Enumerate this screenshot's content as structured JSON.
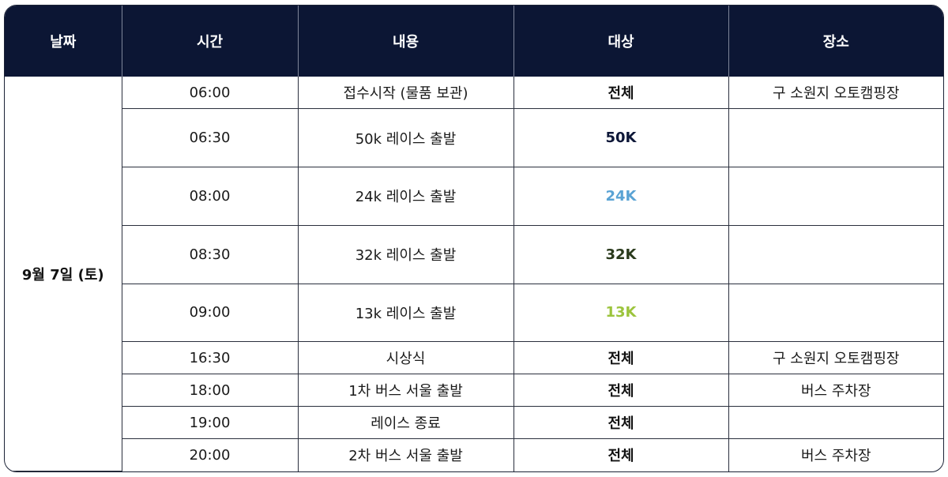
{
  "headers": [
    "날짜",
    "시간",
    "내용",
    "대상",
    "장소"
  ],
  "date": "9월 7일 (토)",
  "rows": [
    {
      "time": "06:00",
      "content": "접수시작 (물품 보관)",
      "target": "전체",
      "target_color": "#111111",
      "place": "구 소원지 오토캠핑장"
    },
    {
      "time": "06:30",
      "content": "50k 레이스 출발",
      "target": "50K",
      "target_color": "#0d1738",
      "place": ""
    },
    {
      "time": "08:00",
      "content": "24k 레이스 출발",
      "target": "24K",
      "target_color": "#5aa3d4",
      "place": ""
    },
    {
      "time": "08:30",
      "content": "32k 레이스 출발",
      "target": "32K",
      "target_color": "#2a3a1c",
      "place": ""
    },
    {
      "time": "09:00",
      "content": "13k 레이스 출발",
      "target": "13K",
      "target_color": "#9cc43c",
      "place": ""
    },
    {
      "time": "16:30",
      "content": "시상식",
      "target": "전체",
      "target_color": "#111111",
      "place": "구 소원지 오토캠핑장"
    },
    {
      "time": "18:00",
      "content": "1차 버스 서울 출발",
      "target": "전체",
      "target_color": "#111111",
      "place": "버스 주차장"
    },
    {
      "time": "19:00",
      "content": "레이스 종료",
      "target": "전체",
      "target_color": "#111111",
      "place": ""
    },
    {
      "time": "20:00",
      "content": "2차 버스 서울 출발",
      "target": "전체",
      "target_color": "#111111",
      "place": "버스 주차장"
    }
  ]
}
